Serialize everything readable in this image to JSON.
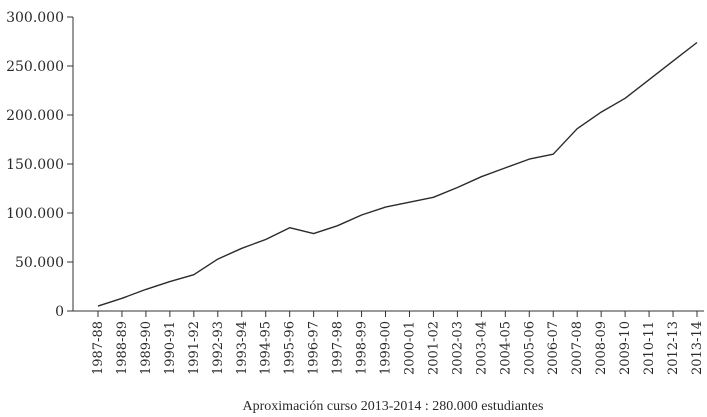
{
  "chart_data": {
    "type": "line",
    "title": "",
    "xlabel": "",
    "ylabel": "",
    "caption": "Aproximación curso 2013-2014 : 280.000 estudiantes",
    "grid": false,
    "legend": "none",
    "ylim": [
      0,
      300000
    ],
    "y_ticks": [
      0,
      50000,
      100000,
      150000,
      200000,
      250000,
      300000
    ],
    "y_tick_labels": [
      "0",
      "50.000",
      "100.000",
      "150.000",
      "200.000",
      "250.000",
      "300.000"
    ],
    "categories": [
      "1987-88",
      "1988-89",
      "1989-90",
      "1990-91",
      "1991-92",
      "1992-93",
      "1993-94",
      "1994-95",
      "1995-96",
      "1996-97",
      "1997-98",
      "1998-99",
      "1999-00",
      "2000-01",
      "2001-02",
      "2002-03",
      "2003-04",
      "2004-05",
      "2005-06",
      "2006-07",
      "2007-08",
      "2008-09",
      "2009-10",
      "2010-11",
      "2012-13",
      "2013-14"
    ],
    "series": [
      {
        "values": [
          5000,
          13000,
          22000,
          30000,
          37000,
          53000,
          64000,
          73000,
          85000,
          79000,
          87000,
          98000,
          106000,
          111000,
          116000,
          126000,
          137000,
          146000,
          155000,
          160000,
          186000,
          203000,
          217000,
          236000,
          255000,
          274000
        ]
      }
    ],
    "colors": {
      "line": "#2b2b2b",
      "axis": "#333333",
      "text": "#2a2a2a"
    }
  }
}
